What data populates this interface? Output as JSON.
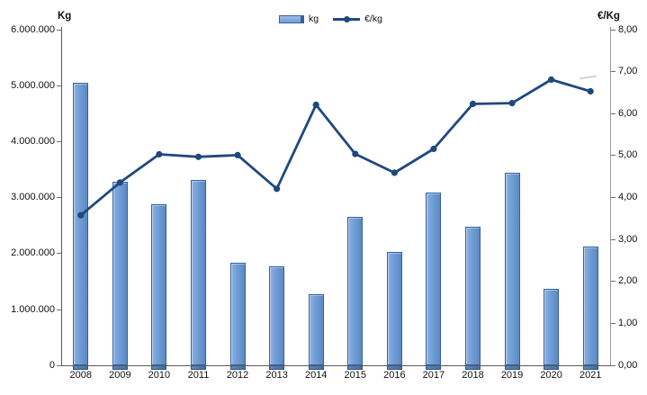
{
  "chart_data": {
    "type": "combo",
    "categories": [
      "2008",
      "2009",
      "2010",
      "2011",
      "2012",
      "2013",
      "2014",
      "2015",
      "2016",
      "2017",
      "2018",
      "2019",
      "2020",
      "2021"
    ],
    "series": [
      {
        "name": "kg",
        "type": "bar",
        "axis": "left",
        "values": [
          5050000,
          3270000,
          2880000,
          3310000,
          1820000,
          1770000,
          1260000,
          2650000,
          2020000,
          3090000,
          2470000,
          3440000,
          1360000,
          2110000
        ]
      },
      {
        "name": "€/kg",
        "type": "line",
        "axis": "right",
        "values": [
          3.57,
          4.35,
          5.02,
          4.96,
          5.0,
          4.2,
          6.2,
          5.03,
          4.58,
          5.15,
          6.22,
          6.24,
          6.8,
          6.52
        ]
      }
    ],
    "left_axis": {
      "title": "Kg",
      "min": 0,
      "max": 6000000,
      "step": 1000000,
      "tick_labels": [
        "0",
        "1.000.000",
        "2.000.000",
        "3.000.000",
        "4.000.000",
        "5.000.000",
        "6.000.000"
      ]
    },
    "right_axis": {
      "title": "€/Kg",
      "min": 0,
      "max": 8,
      "step": 1,
      "tick_labels": [
        "0,00",
        "1,00",
        "2,00",
        "3,00",
        "4,00",
        "5,00",
        "6,00",
        "7,00",
        "8,00"
      ]
    },
    "legend": {
      "position": "top-center",
      "items": [
        {
          "label": "kg",
          "type": "bar"
        },
        {
          "label": "€/kg",
          "type": "line"
        }
      ]
    },
    "grid": "off",
    "colors": {
      "bar_fill": "#6f9dd6",
      "bar_border": "#35619e",
      "bar_pedestal": "#4a76ad",
      "line": "#1f497d",
      "axis_left": "#595959",
      "axis_right": "#9b9b9b",
      "text": "#1a1a1a"
    }
  }
}
